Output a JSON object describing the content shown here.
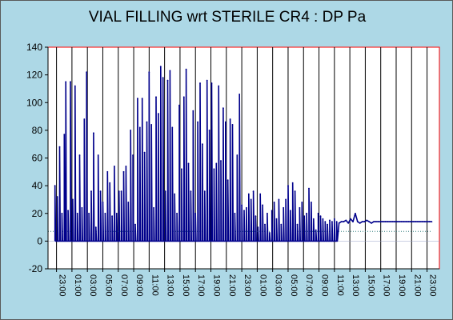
{
  "chart_data": {
    "type": "line",
    "title": "VIAL FILLING wrt STERILE CR4 : DP Pa",
    "xlabel": "",
    "ylabel": "",
    "ylim": [
      -20,
      140
    ],
    "y_ticks": [
      -20,
      0,
      20,
      40,
      60,
      80,
      100,
      120,
      140
    ],
    "x_tick_labels": [
      "23:00",
      "01:00",
      "03:00",
      "05:00",
      "07:00",
      "09:00",
      "11:00",
      "13:00",
      "15:00",
      "17:00",
      "19:00",
      "21:00",
      "23:00",
      "01:00",
      "03:00",
      "05:00",
      "07:00",
      "09:00",
      "11:00",
      "13:00",
      "15:00",
      "17:00",
      "19:00",
      "21:00",
      "23:00"
    ],
    "x_tick_hours": [
      0,
      2,
      4,
      6,
      8,
      10,
      12,
      14,
      16,
      18,
      20,
      22,
      24,
      26,
      28,
      30,
      32,
      34,
      36,
      38,
      40,
      42,
      44,
      46,
      48
    ],
    "x_range_hours": [
      -1.1,
      49.6
    ],
    "grid": "vertical",
    "reference_line": 7,
    "series": [
      {
        "color": "#00008b",
        "x": [
          -0.2,
          0.1,
          0.4,
          0.7,
          1.0,
          1.2,
          1.5,
          1.8,
          2.1,
          2.4,
          2.7,
          3.0,
          3.3,
          3.6,
          3.9,
          4.2,
          4.5,
          4.8,
          5.1,
          5.4,
          5.7,
          6.0,
          6.3,
          6.6,
          6.9,
          7.2,
          7.5,
          7.8,
          8.1,
          8.4,
          8.7,
          9.0,
          9.3,
          9.6,
          9.9,
          10.2,
          10.5,
          10.8,
          11.1,
          11.4,
          11.7,
          12.0,
          12.3,
          12.6,
          12.9,
          13.2,
          13.5,
          13.8,
          14.1,
          14.4,
          14.7,
          15.0,
          15.3,
          15.6,
          15.9,
          16.2,
          16.5,
          16.8,
          17.1,
          17.4,
          17.7,
          18.0,
          18.3,
          18.6,
          18.9,
          19.2,
          19.5,
          19.8,
          20.1,
          20.4,
          20.7,
          21.0,
          21.3,
          21.6,
          21.9,
          22.2,
          22.5,
          22.8,
          23.1,
          23.4,
          23.7,
          24.0,
          24.3,
          24.6,
          24.9,
          25.2,
          25.5,
          25.8,
          26.1,
          26.4,
          26.7,
          27.0,
          27.3,
          27.6,
          27.9,
          28.2,
          28.5,
          28.8,
          29.1,
          29.4,
          29.7,
          30.0,
          30.3,
          30.6,
          30.9,
          31.2,
          31.5,
          31.8,
          32.1,
          32.4,
          32.7,
          33.0,
          33.3,
          33.6,
          33.9,
          34.2,
          34.5,
          34.8,
          35.1,
          35.4,
          35.7,
          36.0,
          36.3,
          36.6,
          36.9,
          37.2,
          37.5,
          37.8,
          38.1,
          38.4,
          38.7,
          39.0,
          39.3,
          39.6,
          39.9,
          40.2,
          40.5,
          40.8,
          41.1,
          41.4,
          41.7,
          42.0,
          42.3,
          42.6,
          42.9,
          43.2,
          43.5,
          43.8,
          44.1,
          44.4,
          44.7,
          45.0,
          45.3,
          45.6,
          45.9,
          46.2,
          46.5,
          46.8,
          47.1,
          47.4,
          47.7,
          48.0,
          48.3,
          48.6
        ],
        "y": [
          40,
          32,
          68,
          20,
          77,
          115,
          22,
          115,
          30,
          112,
          20,
          62,
          24,
          88,
          122,
          20,
          36,
          78,
          10,
          62,
          36,
          28,
          20,
          50,
          42,
          18,
          54,
          20,
          36,
          36,
          50,
          54,
          28,
          80,
          62,
          12,
          103,
          82,
          103,
          64,
          86,
          122,
          84,
          24,
          104,
          92,
          126,
          118,
          36,
          116,
          123,
          82,
          34,
          20,
          98,
          52,
          104,
          124,
          56,
          36,
          94,
          20,
          86,
          114,
          70,
          36,
          116,
          80,
          114,
          52,
          56,
          112,
          58,
          96,
          86,
          44,
          88,
          84,
          20,
          62,
          106,
          26,
          22,
          24,
          34,
          30,
          36,
          18,
          10,
          34,
          26,
          12,
          20,
          6,
          22,
          28,
          16,
          30,
          12,
          24,
          30,
          40,
          22,
          42,
          36,
          12,
          24,
          28,
          18,
          20,
          38,
          28,
          16,
          8,
          20,
          18,
          16,
          14,
          12,
          15,
          14,
          16,
          14,
          13,
          14,
          14,
          15,
          13,
          16,
          14,
          20,
          14,
          13,
          14,
          14,
          15,
          14,
          13,
          14,
          14,
          14,
          14,
          14,
          14,
          14,
          14,
          14,
          14,
          14,
          14,
          14,
          14,
          14,
          14,
          14,
          14,
          14,
          14,
          14,
          14,
          14,
          14,
          14,
          14
        ]
      }
    ]
  }
}
